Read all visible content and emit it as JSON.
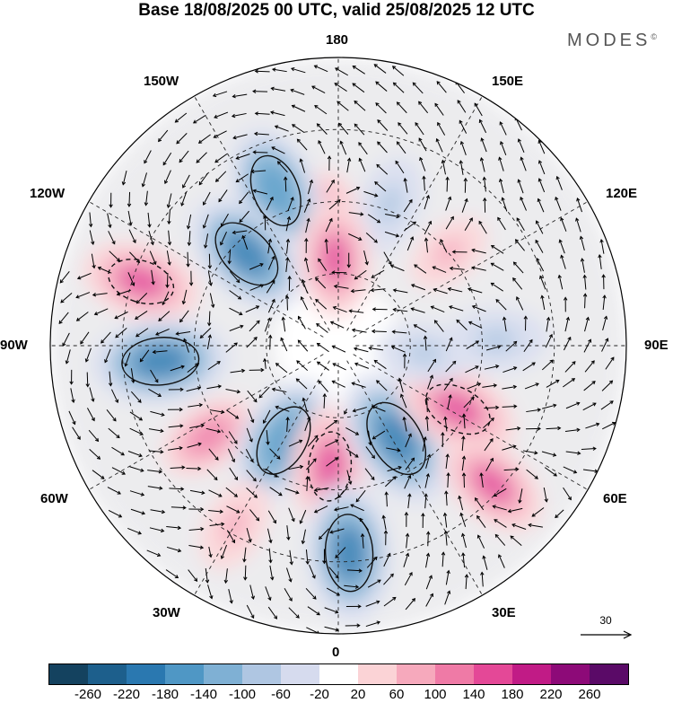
{
  "title": "Base 18/08/2025 00 UTC, valid 25/08/2025 12 UTC",
  "logo": "MODES",
  "logo_mark": "©",
  "lon_labels": {
    "top": "180",
    "bottom": "0",
    "left": "90W",
    "right": "90E",
    "upper_left_1": "150W",
    "upper_left_2": "120W",
    "lower_left_1": "60W",
    "lower_left_2": "30W",
    "upper_right_1": "150E",
    "upper_right_2": "120E",
    "lower_right_1": "60E",
    "lower_right_2": "30E"
  },
  "reference_vector": {
    "value": "30"
  },
  "colorbar": {
    "colors": [
      "#14425f",
      "#1d5f8c",
      "#2a78b0",
      "#4f97c5",
      "#7fb0d4",
      "#afc6e2",
      "#d6dbee",
      "#ffffff",
      "#fbd3d6",
      "#f6a9bc",
      "#ef7aa6",
      "#e44897",
      "#c11b86",
      "#8d0a78",
      "#5a0a67"
    ],
    "ticks": [
      "-260",
      "-220",
      "-180",
      "-140",
      "-100",
      "-60",
      "-20",
      "20",
      "60",
      "100",
      "140",
      "180",
      "220",
      "260"
    ]
  },
  "anomaly_cells": [
    {
      "name": "pacific-positive-anomaly",
      "lon": -175,
      "r": 0.42,
      "value": 120
    },
    {
      "name": "west-pacific-negative-anomaly",
      "lon": -158,
      "r": 0.58,
      "value": -180
    },
    {
      "name": "aleutian-negative-anomaly",
      "lon": -135,
      "r": 0.45,
      "value": -190
    },
    {
      "name": "alaska-positive-anomaly",
      "lon": -108,
      "r": 0.72,
      "value": 150
    },
    {
      "name": "canada-negative-anomaly",
      "lon": -85,
      "r": 0.62,
      "value": -200
    },
    {
      "name": "hudson-positive-anomaly",
      "lon": -55,
      "r": 0.55,
      "value": 100
    },
    {
      "name": "greenland-negative-anomaly",
      "lon": -30,
      "r": 0.38,
      "value": -180
    },
    {
      "name": "iceland-positive-anomaly",
      "lon": -4,
      "r": 0.42,
      "value": 160
    },
    {
      "name": "north-atlantic-positive-anomaly",
      "lon": -30,
      "r": 0.72,
      "value": 80
    },
    {
      "name": "europe-negative-anomaly",
      "lon": 3,
      "r": 0.72,
      "value": -200
    },
    {
      "name": "scandinavia-negative-anomaly",
      "lon": 32,
      "r": 0.38,
      "value": -210
    },
    {
      "name": "siberia-positive-anomaly",
      "lon": 62,
      "r": 0.47,
      "value": 160
    },
    {
      "name": "central-asia-positive-anomaly",
      "lon": 48,
      "r": 0.72,
      "value": 140
    },
    {
      "name": "east-siberia-negative-anomaly",
      "lon": 92,
      "r": 0.55,
      "value": -100
    },
    {
      "name": "far-east-negative-anomaly",
      "lon": 85,
      "r": 0.3,
      "value": -80
    },
    {
      "name": "north-pacific-east-positive-anomaly",
      "lon": 130,
      "r": 0.5,
      "value": 60
    },
    {
      "name": "bering-negative-anomaly",
      "lon": 160,
      "r": 0.52,
      "value": -90
    },
    {
      "name": "arctic-east-siberian-positive-anomaly",
      "lon": -178,
      "r": 0.3,
      "value": 140
    }
  ]
}
